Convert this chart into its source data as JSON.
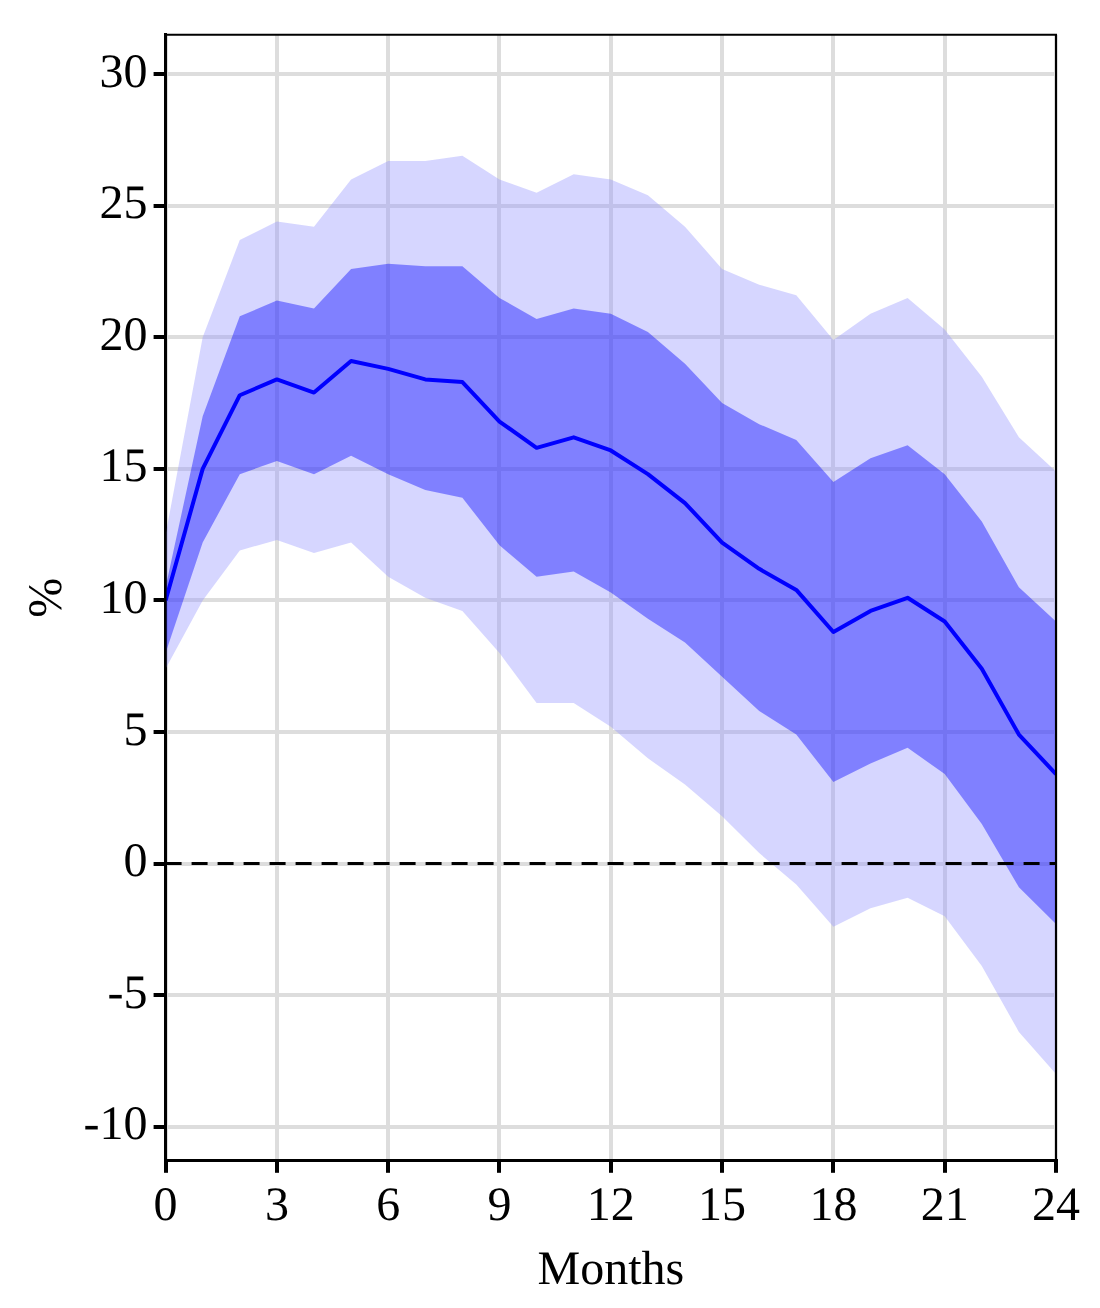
{
  "chart_data": {
    "type": "line",
    "xlabel": "Months",
    "ylabel": "%",
    "x": [
      0,
      1,
      2,
      3,
      4,
      5,
      6,
      7,
      8,
      9,
      10,
      11,
      12,
      13,
      14,
      15,
      16,
      17,
      18,
      19,
      20,
      21,
      22,
      23,
      24
    ],
    "series": [
      {
        "color": "#9999ff",
        "values": [
          null,
          null,
          null,
          null,
          null,
          null,
          null,
          null,
          null,
          null,
          null,
          null,
          null,
          null,
          null,
          null,
          null,
          null,
          null,
          null,
          null,
          null,
          null,
          null,
          null
        ],
        "lower": [
          7.4,
          10,
          11.9,
          12.3,
          11.8,
          12.2,
          10.9,
          10.1,
          9.6,
          8.0,
          6.1,
          6.1,
          5.2,
          4.0,
          3.0,
          1.8,
          0.4,
          -0.8,
          -2.4,
          -1.7,
          -1.3,
          -2.0,
          -3.9,
          -6.4,
          -8.0
        ],
        "upper": [
          12.5,
          20,
          23.7,
          24.4,
          24.2,
          26.0,
          26.7,
          26.7,
          26.9,
          26.0,
          25.5,
          26.2,
          26.0,
          25.4,
          24.2,
          22.6,
          22.0,
          21.6,
          19.9,
          20.9,
          21.5,
          20.3,
          18.5,
          16.2,
          14.9
        ]
      },
      {
        "color": "#0000ff",
        "values": [
          10,
          15,
          17.8,
          18.4,
          17.9,
          19.1,
          18.8,
          18.4,
          18.3,
          16.8,
          15.8,
          16.2,
          15.7,
          14.8,
          13.7,
          12.2,
          11.2,
          10.4,
          8.8,
          9.6,
          10.1,
          9.2,
          7.4,
          4.9,
          3.4
        ],
        "lower": [
          8.0,
          12.2,
          14.8,
          15.3,
          14.8,
          15.5,
          14.8,
          14.2,
          13.9,
          12.1,
          10.9,
          11.1,
          10.3,
          9.3,
          8.4,
          7.1,
          5.8,
          4.9,
          3.1,
          3.8,
          4.4,
          3.4,
          1.5,
          -0.9,
          -2.3
        ],
        "upper": [
          10.5,
          17,
          20.8,
          21.4,
          21.1,
          22.6,
          22.8,
          22.7,
          22.7,
          21.5,
          20.7,
          21.1,
          20.9,
          20.2,
          19.0,
          17.5,
          16.7,
          16.1,
          14.5,
          15.4,
          15.9,
          14.8,
          13.0,
          10.5,
          9.2
        ]
      }
    ],
    "xlim": [
      0,
      24
    ],
    "xticks": [
      0,
      3,
      6,
      9,
      12,
      15,
      18,
      21,
      24
    ],
    "ylim": [
      -11.3,
      31.5
    ],
    "yticks": [
      -10,
      -5,
      0,
      5,
      10,
      15,
      20,
      25,
      30
    ],
    "grid": true,
    "legend": false,
    "marker": "none",
    "line_style": "solid",
    "ref_lines": [
      {
        "axis": "y",
        "value": 0,
        "color": "#000000",
        "line_style": "dashed"
      }
    ]
  }
}
